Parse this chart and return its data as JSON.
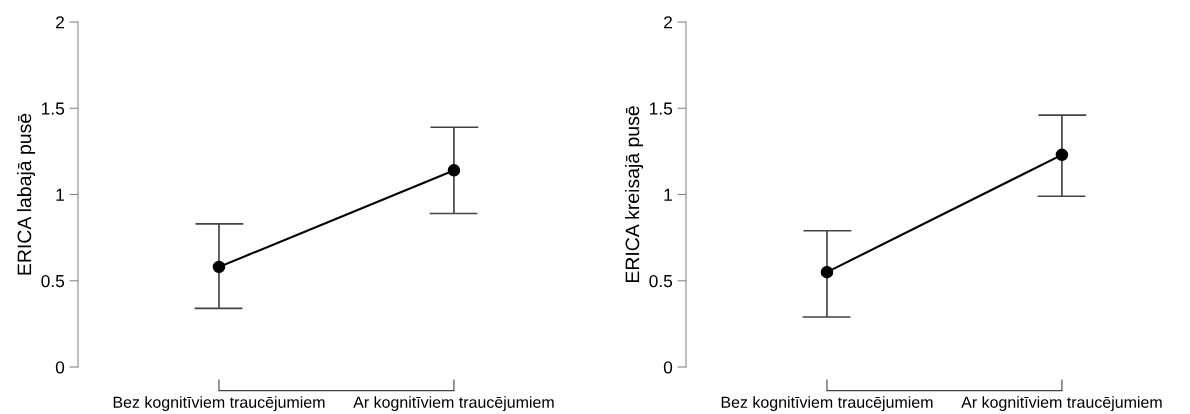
{
  "chart_data": [
    {
      "type": "line",
      "ylabel": "ERICA labajā pusē",
      "categories": [
        "Bez kognitīviem traucējumiem",
        "Ar kognitīviem traucējumiem"
      ],
      "values": [
        0.58,
        1.14
      ],
      "errors": [
        [
          0.34,
          0.83
        ],
        [
          0.89,
          1.39
        ]
      ],
      "color": "#000000",
      "marker": "circle",
      "line_style": "solid",
      "ylim": [
        0,
        2
      ],
      "yticks": [
        0,
        0.5,
        1,
        1.5,
        2
      ],
      "grid": false,
      "legend": false
    },
    {
      "type": "line",
      "ylabel": "ERICA kreisajā pusē",
      "categories": [
        "Bez kognitīviem traucējumiem",
        "Ar kognitīviem traucējumiem"
      ],
      "values": [
        0.55,
        1.23
      ],
      "errors": [
        [
          0.29,
          0.79
        ],
        [
          0.99,
          1.46
        ]
      ],
      "color": "#000000",
      "marker": "circle",
      "line_style": "solid",
      "ylim": [
        0,
        2
      ],
      "yticks": [
        0,
        0.5,
        1,
        1.5,
        2
      ],
      "grid": false,
      "legend": false
    }
  ]
}
